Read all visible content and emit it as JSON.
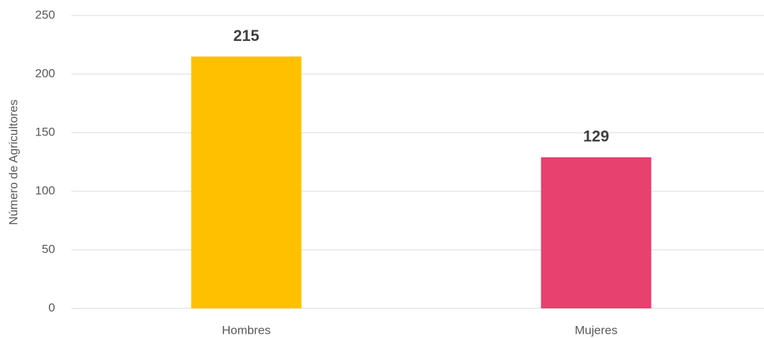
{
  "chart_data": {
    "type": "bar",
    "y_label": "Número de Agricultores",
    "categories": [
      "Hombres",
      "Mujeres"
    ],
    "values": [
      215,
      129
    ],
    "colors": [
      "#ffc000",
      "#e6416f"
    ],
    "ylim": [
      0,
      250
    ],
    "yticks": [
      0,
      50,
      100,
      150,
      200,
      250
    ],
    "grid": true
  }
}
